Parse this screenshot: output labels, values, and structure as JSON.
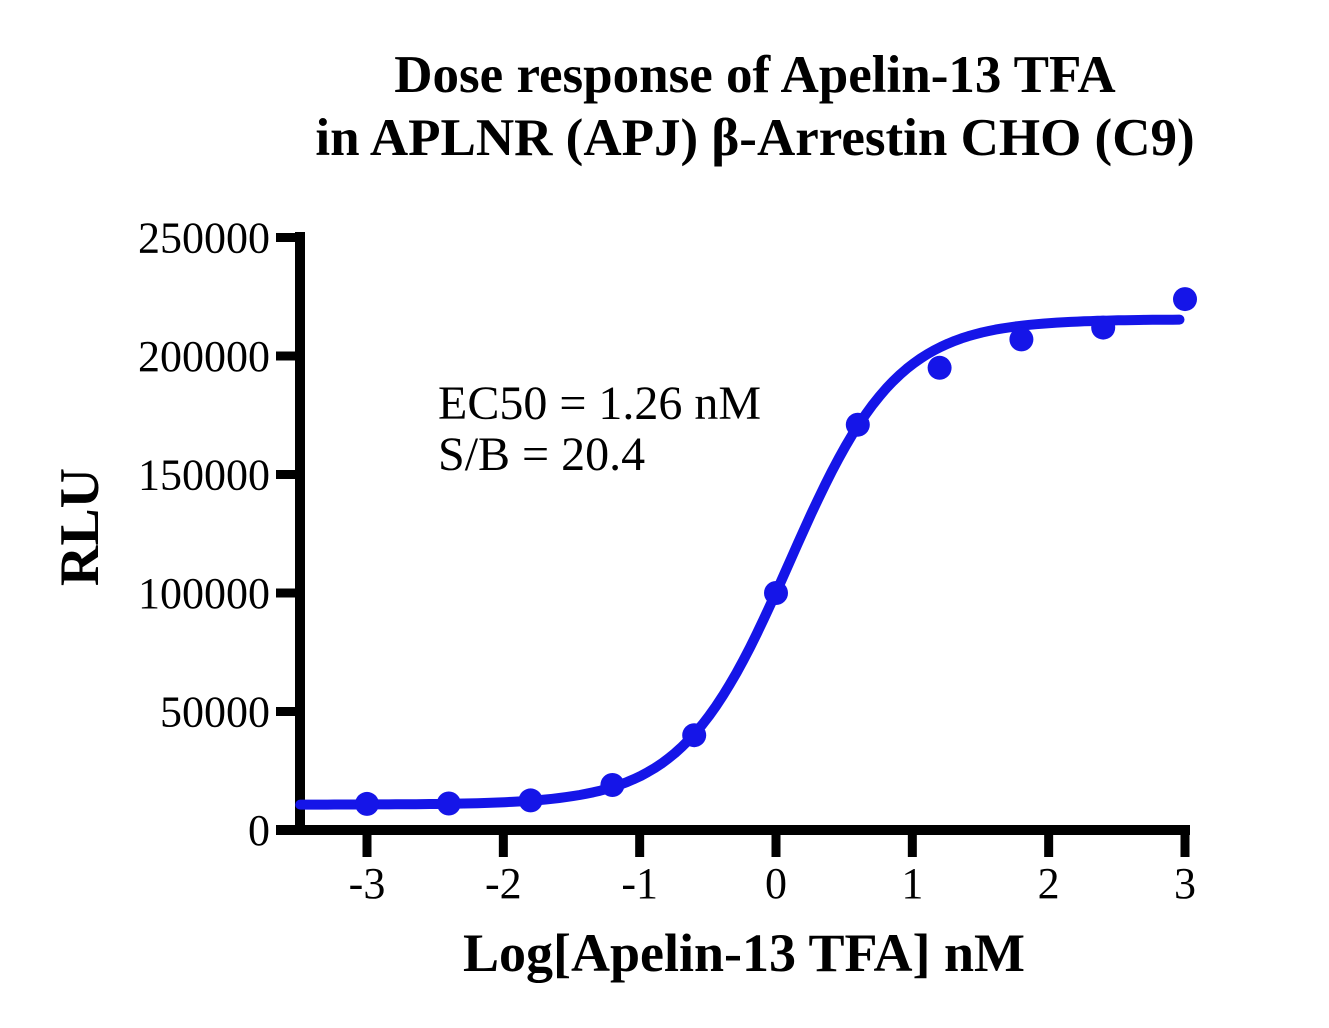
{
  "title": {
    "line1": "Dose response of Apelin-13 TFA",
    "line2": "in APLNR (APJ) β-Arrestin CHO (C9)"
  },
  "annotation": {
    "line1": "EC50 = 1.26 nM",
    "line2": "S/B = 20.4"
  },
  "axes": {
    "x_label": "Log[Apelin-13 TFA] nM",
    "y_label": "RLU"
  },
  "colors": {
    "series_blue": "#1515e8",
    "axis_black": "#000000",
    "background": "#ffffff"
  },
  "chart_data": {
    "type": "scatter",
    "title": "Dose response of Apelin-13 TFA in APLNR (APJ) β-Arrestin CHO (C9)",
    "xlabel": "Log[Apelin-13 TFA] nM",
    "ylabel": "RLU",
    "xlim": [
      -3.5,
      3
    ],
    "ylim": [
      0,
      250000
    ],
    "x_ticks": [
      -3,
      -2,
      -1,
      0,
      1,
      2,
      3
    ],
    "y_ticks": [
      0,
      50000,
      100000,
      150000,
      200000,
      250000
    ],
    "grid": false,
    "legend": "none",
    "annotations": [
      "EC50 = 1.26 nM",
      "S/B = 20.4"
    ],
    "series": [
      {
        "name": "Apelin-13 TFA",
        "color": "#1515e8",
        "marker": "circle",
        "x": [
          -3,
          -2.4,
          -1.8,
          -1.2,
          -0.6,
          0,
          0.6,
          1.2,
          1.8,
          2.4,
          3
        ],
        "y": [
          11000,
          11200,
          12500,
          19000,
          40000,
          100000,
          171000,
          195000,
          207000,
          212000,
          224000
        ]
      }
    ],
    "fit_curve": {
      "model": "4PL",
      "bottom": 10700,
      "top": 215500,
      "log_ec50": 0.1,
      "ec50_nM": 1.26,
      "hill": 1.1,
      "x_start": -3.49,
      "x_end": 3.0
    }
  }
}
